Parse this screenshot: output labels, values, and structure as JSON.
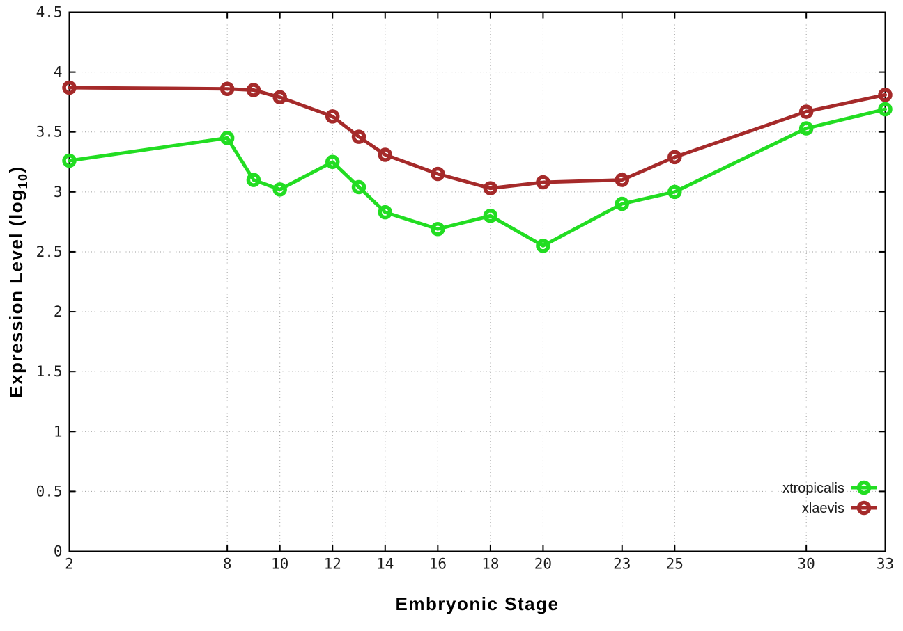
{
  "figure": {
    "background": "#ffffff",
    "plot_border_color": "#000000",
    "grid_color": "#9c9c9c",
    "tick_label_color": "#1c1c1c",
    "axis_title_color": "#000000"
  },
  "chart_data": {
    "type": "line",
    "title": "",
    "xlabel": "Embryonic Stage",
    "ylabel": "Expression Level (log10)",
    "ylabel_parts": {
      "pre": "Expression Level (log",
      "sub": "10",
      "post": ")"
    },
    "x": [
      2,
      8,
      9,
      10,
      12,
      13,
      14,
      16,
      18,
      20,
      23,
      25,
      30,
      33
    ],
    "xlim": [
      2,
      33
    ],
    "ylim": [
      0,
      4.5
    ],
    "xtick_values": [
      2,
      8,
      10,
      12,
      14,
      16,
      18,
      20,
      23,
      25,
      30,
      33
    ],
    "xtick_labels": [
      "2",
      "8",
      "10",
      "12",
      "14",
      "16",
      "18",
      "20",
      "23",
      "25",
      "30",
      "33"
    ],
    "ytick_values": [
      0,
      0.5,
      1,
      1.5,
      2,
      2.5,
      3,
      3.5,
      4,
      4.5
    ],
    "ytick_labels": [
      "0",
      "0.5",
      "1",
      "1.5",
      "2",
      "2.5",
      "3",
      "3.5",
      "4",
      "4.5"
    ],
    "grid": true,
    "legend_position": "inside-bottom-right",
    "series": [
      {
        "name": "xtropicalis",
        "color": "#22dd22",
        "marker": "open-circle",
        "values": [
          3.26,
          3.45,
          3.1,
          3.02,
          3.25,
          3.04,
          2.83,
          2.69,
          2.8,
          2.55,
          2.9,
          3.0,
          3.53,
          3.69
        ]
      },
      {
        "name": "xlaevis",
        "color": "#a52a2a",
        "marker": "open-circle",
        "values": [
          3.87,
          3.86,
          3.85,
          3.79,
          3.63,
          3.46,
          3.31,
          3.15,
          3.03,
          3.08,
          3.1,
          3.29,
          3.67,
          3.81
        ]
      }
    ]
  }
}
